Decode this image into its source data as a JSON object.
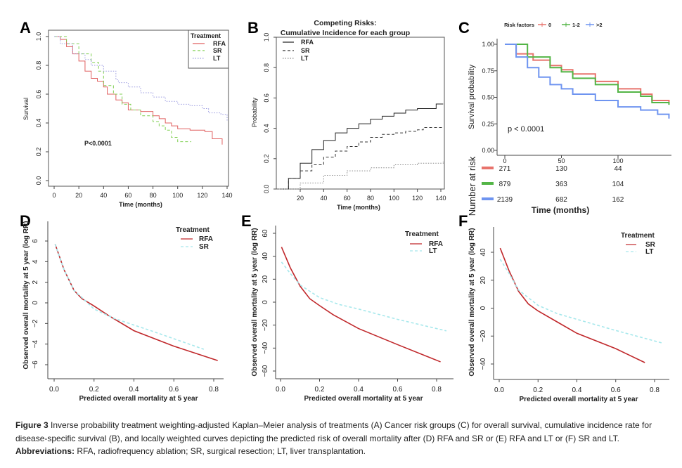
{
  "panel_labels": [
    "A",
    "B",
    "C",
    "D",
    "E",
    "F"
  ],
  "chart_data": [
    {
      "type": "line",
      "panel": "A",
      "step": true,
      "xlabel": "Time (months)",
      "ylabel": "Survival",
      "xlim": [
        0,
        140
      ],
      "ylim": [
        0,
        1
      ],
      "xticks": [
        "0",
        "20",
        "40",
        "60",
        "80",
        "100",
        "120",
        "140"
      ],
      "yticks": [
        "0.0",
        "0.2",
        "0.4",
        "0.6",
        "0.8",
        "1.0"
      ],
      "legend_title": "Treatment",
      "legend_placement": "top-right",
      "annotation": "P<0.0001",
      "series": [
        {
          "name": "RFA",
          "color": "#e06060",
          "dash": "solid",
          "points": [
            [
              0,
              1
            ],
            [
              5,
              0.98
            ],
            [
              10,
              0.93
            ],
            [
              15,
              0.88
            ],
            [
              20,
              0.83
            ],
            [
              25,
              0.76
            ],
            [
              30,
              0.71
            ],
            [
              35,
              0.69
            ],
            [
              40,
              0.65
            ],
            [
              43,
              0.6
            ],
            [
              50,
              0.56
            ],
            [
              55,
              0.54
            ],
            [
              60,
              0.49
            ],
            [
              70,
              0.48
            ],
            [
              80,
              0.45
            ],
            [
              85,
              0.43
            ],
            [
              90,
              0.4
            ],
            [
              95,
              0.38
            ],
            [
              100,
              0.36
            ],
            [
              110,
              0.35
            ],
            [
              122,
              0.34
            ],
            [
              128,
              0.29
            ],
            [
              136,
              0.25
            ]
          ]
        },
        {
          "name": "SR",
          "color": "#7fcf50",
          "dash": "dashed",
          "points": [
            [
              0,
              1
            ],
            [
              10,
              0.95
            ],
            [
              20,
              0.88
            ],
            [
              30,
              0.82
            ],
            [
              36,
              0.76
            ],
            [
              40,
              0.66
            ],
            [
              48,
              0.6
            ],
            [
              55,
              0.53
            ],
            [
              62,
              0.49
            ],
            [
              70,
              0.45
            ],
            [
              80,
              0.41
            ],
            [
              85,
              0.38
            ],
            [
              90,
              0.35
            ],
            [
              95,
              0.3
            ],
            [
              100,
              0.27
            ],
            [
              111,
              0.27
            ]
          ]
        },
        {
          "name": "LT",
          "color": "#9a9ae0",
          "dash": "dotted",
          "points": [
            [
              0,
              1
            ],
            [
              5,
              0.95
            ],
            [
              15,
              0.88
            ],
            [
              25,
              0.84
            ],
            [
              30,
              0.8
            ],
            [
              40,
              0.76
            ],
            [
              50,
              0.7
            ],
            [
              52,
              0.68
            ],
            [
              60,
              0.65
            ],
            [
              70,
              0.61
            ],
            [
              80,
              0.58
            ],
            [
              90,
              0.55
            ],
            [
              100,
              0.53
            ],
            [
              110,
              0.52
            ],
            [
              120,
              0.5
            ],
            [
              125,
              0.47
            ],
            [
              135,
              0.46
            ],
            [
              140,
              0.41
            ]
          ]
        }
      ]
    },
    {
      "type": "line",
      "panel": "B",
      "step": true,
      "title": "Competing Risks:",
      "subtitle": "Cumulative Incidence for each group",
      "xlabel": "Time (months)",
      "ylabel": "Probability",
      "xlim": [
        0,
        142
      ],
      "ylim": [
        0,
        1
      ],
      "xticks": [
        "20",
        "40",
        "60",
        "80",
        "100",
        "120",
        "140"
      ],
      "yticks": [
        "0.0",
        "0.2",
        "0.4",
        "0.6",
        "0.8",
        "1.0"
      ],
      "legend_placement": "top-left",
      "series": [
        {
          "name": "RFA",
          "color": "#222222",
          "dash": "solid",
          "points": [
            [
              2,
              0
            ],
            [
              10,
              0.07
            ],
            [
              20,
              0.17
            ],
            [
              30,
              0.26
            ],
            [
              40,
              0.32
            ],
            [
              50,
              0.37
            ],
            [
              60,
              0.4
            ],
            [
              70,
              0.43
            ],
            [
              80,
              0.46
            ],
            [
              90,
              0.48
            ],
            [
              100,
              0.5
            ],
            [
              110,
              0.52
            ],
            [
              120,
              0.53
            ],
            [
              136,
              0.535
            ],
            [
              136,
              0.56
            ],
            [
              142,
              0.56
            ]
          ]
        },
        {
          "name": "SR",
          "color": "#333333",
          "dash": "dashed",
          "points": [
            [
              2,
              0
            ],
            [
              10,
              0.07
            ],
            [
              20,
              0.12
            ],
            [
              30,
              0.16
            ],
            [
              40,
              0.21
            ],
            [
              50,
              0.25
            ],
            [
              60,
              0.28
            ],
            [
              70,
              0.31
            ],
            [
              80,
              0.34
            ],
            [
              90,
              0.36
            ],
            [
              100,
              0.37
            ],
            [
              110,
              0.38
            ],
            [
              120,
              0.39
            ],
            [
              125,
              0.405
            ],
            [
              142,
              0.405
            ]
          ]
        },
        {
          "name": "LT",
          "color": "#888888",
          "dash": "dotted",
          "points": [
            [
              2,
              0
            ],
            [
              20,
              0.04
            ],
            [
              40,
              0.09
            ],
            [
              60,
              0.12
            ],
            [
              80,
              0.14
            ],
            [
              100,
              0.16
            ],
            [
              120,
              0.17
            ],
            [
              142,
              0.185
            ]
          ]
        }
      ]
    },
    {
      "type": "line",
      "panel": "C",
      "step": true,
      "xlabel": "Time (months)",
      "ylabel": "Survival probability",
      "xlim": [
        -3,
        147
      ],
      "ylim": [
        0,
        1
      ],
      "xticks": [
        "0",
        "50",
        "100"
      ],
      "yticks": [
        "0.00",
        "0.25",
        "0.50",
        "0.75",
        "1.00"
      ],
      "legend_title": "Risk factors",
      "legend_placement": "top",
      "annotation": "p < 0.0001",
      "risk_table": {
        "title": "Number at risk",
        "times": [
          0,
          50,
          100
        ],
        "rows": [
          {
            "group": "0",
            "values": [
              "271",
              "130",
              "44"
            ]
          },
          {
            "group": "1-2",
            "values": [
              "879",
              "363",
              "104"
            ]
          },
          {
            "group": ">2",
            "values": [
              "2139",
              "682",
              "162"
            ]
          }
        ]
      },
      "series": [
        {
          "name": "0",
          "color": "#e8736c",
          "dash": "solid",
          "points": [
            [
              0,
              1
            ],
            [
              10,
              0.91
            ],
            [
              25,
              0.85
            ],
            [
              40,
              0.8
            ],
            [
              50,
              0.76
            ],
            [
              60,
              0.72
            ],
            [
              80,
              0.65
            ],
            [
              100,
              0.58
            ],
            [
              120,
              0.53
            ],
            [
              130,
              0.47
            ],
            [
              145,
              0.45
            ]
          ]
        },
        {
          "name": "1-2",
          "color": "#53b546",
          "dash": "solid",
          "points": [
            [
              0,
              1
            ],
            [
              20,
              0.88
            ],
            [
              40,
              0.78
            ],
            [
              50,
              0.74
            ],
            [
              60,
              0.68
            ],
            [
              80,
              0.62
            ],
            [
              100,
              0.55
            ],
            [
              120,
              0.51
            ],
            [
              130,
              0.45
            ],
            [
              145,
              0.43
            ]
          ]
        },
        {
          "name": ">2",
          "color": "#6e94f0",
          "dash": "solid",
          "points": [
            [
              0,
              1
            ],
            [
              10,
              0.88
            ],
            [
              20,
              0.78
            ],
            [
              30,
              0.69
            ],
            [
              40,
              0.62
            ],
            [
              50,
              0.58
            ],
            [
              60,
              0.53
            ],
            [
              80,
              0.47
            ],
            [
              100,
              0.41
            ],
            [
              120,
              0.38
            ],
            [
              135,
              0.34
            ],
            [
              145,
              0.3
            ]
          ]
        }
      ]
    },
    {
      "type": "line",
      "panel": "D",
      "xlabel": "Predicted overall mortality at 5 year",
      "ylabel": "Observed overall mortality at 5 year (log RR)",
      "xlim": [
        -0.03,
        0.85
      ],
      "ylim": [
        -7.5,
        7.5
      ],
      "xticks": [
        "0.0",
        "0.2",
        "0.4",
        "0.6",
        "0.8"
      ],
      "yticks": [
        "−6",
        "−4",
        "−2",
        "0",
        "2",
        "4",
        "6"
      ],
      "legend_title": "Treatment",
      "legend_placement": "top-right",
      "series": [
        {
          "name": "RFA",
          "color": "#c0282b",
          "dash": "solid",
          "points": [
            [
              0.005,
              5.7
            ],
            [
              0.05,
              3.2
            ],
            [
              0.1,
              1.2
            ],
            [
              0.14,
              0.4
            ],
            [
              0.2,
              -0.3
            ],
            [
              0.27,
              -1.2
            ],
            [
              0.4,
              -2.7
            ],
            [
              0.6,
              -4.2
            ],
            [
              0.82,
              -5.6
            ]
          ]
        },
        {
          "name": "SR",
          "color": "#a6e8ec",
          "dash": "dashed",
          "points": [
            [
              0.005,
              5.7
            ],
            [
              0.05,
              3.2
            ],
            [
              0.1,
              1.2
            ],
            [
              0.14,
              0.5
            ],
            [
              0.2,
              -0.6
            ],
            [
              0.3,
              -1.5
            ],
            [
              0.5,
              -2.8
            ],
            [
              0.75,
              -4.5
            ]
          ]
        }
      ]
    },
    {
      "type": "line",
      "panel": "E",
      "xlabel": "Predicted overall mortality at 5 year",
      "ylabel": "Observed overall mortality at 5 year (log RR)",
      "xlim": [
        -0.03,
        0.88
      ],
      "ylim": [
        -67,
        67
      ],
      "xticks": [
        "0.0",
        "0.2",
        "0.4",
        "0.6",
        "0.8"
      ],
      "yticks": [
        "−60",
        "−40",
        "−20",
        "0",
        "20",
        "40",
        "60"
      ],
      "legend_title": "Treatment",
      "legend_placement": "top-right",
      "series": [
        {
          "name": "RFA",
          "color": "#c0282b",
          "dash": "solid",
          "points": [
            [
              0.005,
              48
            ],
            [
              0.05,
              30
            ],
            [
              0.1,
              14
            ],
            [
              0.15,
              3
            ],
            [
              0.2,
              -3
            ],
            [
              0.27,
              -11
            ],
            [
              0.4,
              -23
            ],
            [
              0.6,
              -37
            ],
            [
              0.82,
              -52
            ]
          ]
        },
        {
          "name": "LT",
          "color": "#a6e8ec",
          "dash": "dashed",
          "points": [
            [
              0.005,
              35
            ],
            [
              0.05,
              25
            ],
            [
              0.1,
              15
            ],
            [
              0.2,
              4
            ],
            [
              0.3,
              -2
            ],
            [
              0.4,
              -6
            ],
            [
              0.6,
              -15
            ],
            [
              0.85,
              -25
            ]
          ]
        }
      ]
    },
    {
      "type": "line",
      "panel": "F",
      "xlabel": "Predicted overall mortality at 5 year",
      "ylabel": "Observed overall mortality at 5 year (log RR)",
      "xlim": [
        -0.03,
        0.88
      ],
      "ylim": [
        -50,
        57
      ],
      "xticks": [
        "0.0",
        "0.2",
        "0.4",
        "0.6",
        "0.8"
      ],
      "yticks": [
        "−40",
        "−20",
        "0",
        "20",
        "40"
      ],
      "legend_title": "Treatment",
      "legend_placement": "top-right",
      "series": [
        {
          "name": "SR",
          "color": "#c0282b",
          "dash": "solid",
          "points": [
            [
              0.005,
              43
            ],
            [
              0.05,
              27
            ],
            [
              0.1,
              12
            ],
            [
              0.15,
              3
            ],
            [
              0.2,
              -2
            ],
            [
              0.3,
              -10
            ],
            [
              0.4,
              -18
            ],
            [
              0.6,
              -29
            ],
            [
              0.75,
              -39
            ]
          ]
        },
        {
          "name": "LT",
          "color": "#a6e8ec",
          "dash": "dashed",
          "points": [
            [
              0.005,
              35
            ],
            [
              0.05,
              25
            ],
            [
              0.1,
              13
            ],
            [
              0.2,
              2
            ],
            [
              0.3,
              -4
            ],
            [
              0.4,
              -8
            ],
            [
              0.6,
              -16
            ],
            [
              0.84,
              -25
            ]
          ]
        }
      ]
    }
  ],
  "caption": {
    "figure_label": "Figure 3",
    "text": " Inverse probability treatment weighting-adjusted Kaplan–Meier analysis of treatments (A) Cancer risk groups (C) for overall survival, cumulative incidence rate for disease-specific survival (B), and locally weighted curves depicting the predicted risk of overall mortality after (D) RFA and SR or (E) RFA and LT or (F) SR and LT.",
    "abbrev_label": "Abbreviations:",
    "abbrev_text": " RFA, radiofrequency ablation; SR, surgical resection; LT, liver transplantation."
  }
}
